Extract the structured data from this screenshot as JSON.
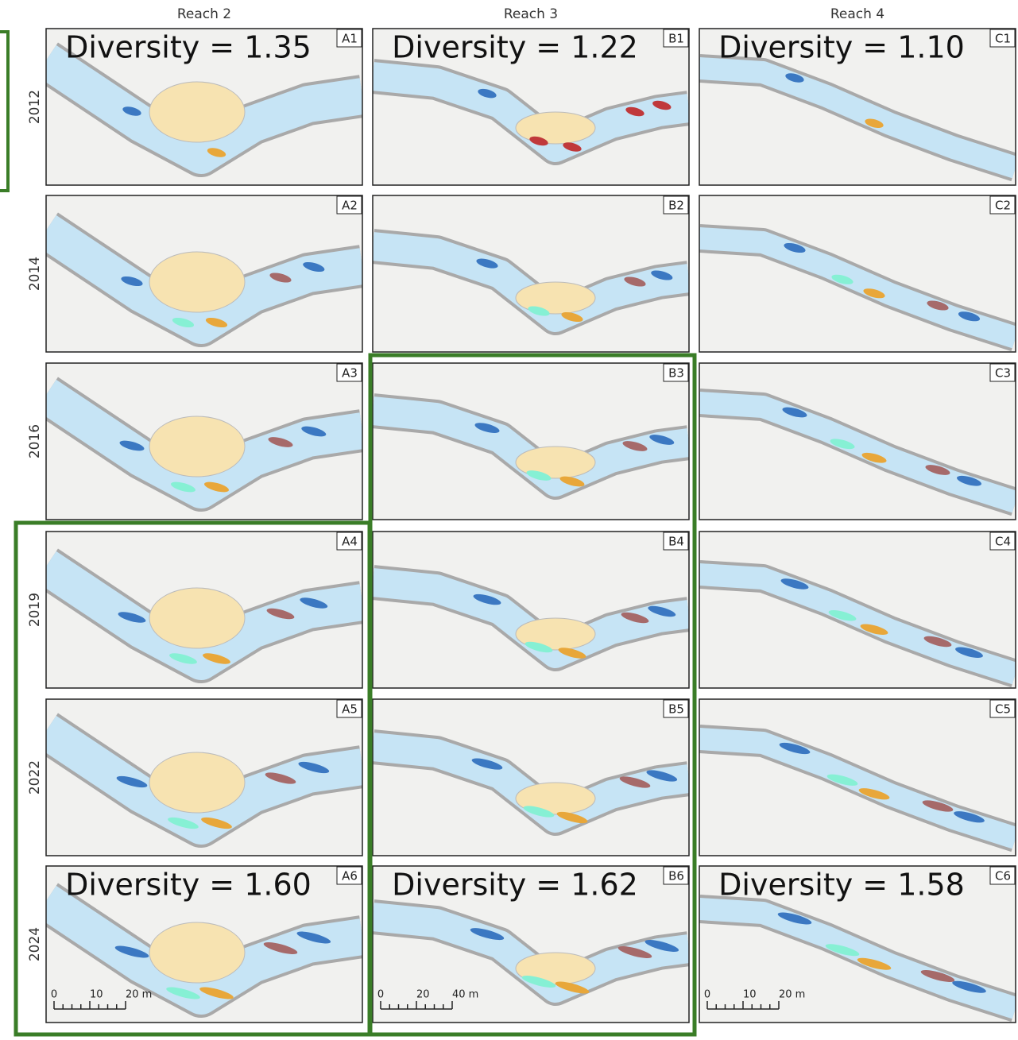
{
  "row_labels": [
    "2012",
    "2014",
    "2016",
    "2019",
    "2022",
    "2024"
  ],
  "columns": [
    {
      "header": "Reach 2",
      "scale": [
        "0",
        "10",
        "20 m"
      ],
      "panels": [
        {
          "label": "A1",
          "diversity": "Diversity = 1.35"
        },
        {
          "label": "A2"
        },
        {
          "label": "A3"
        },
        {
          "label": "A4"
        },
        {
          "label": "A5"
        },
        {
          "label": "A6",
          "diversity": "Diversity = 1.60"
        }
      ]
    },
    {
      "header": "Reach 3",
      "scale": [
        "0",
        "20",
        "40 m"
      ],
      "panels": [
        {
          "label": "B1",
          "diversity": "Diversity = 1.22"
        },
        {
          "label": "B2"
        },
        {
          "label": "B3"
        },
        {
          "label": "B4"
        },
        {
          "label": "B5"
        },
        {
          "label": "B6",
          "diversity": "Diversity = 1.62"
        }
      ]
    },
    {
      "header": "Reach 4",
      "scale": [
        "0",
        "10",
        "20 m"
      ],
      "panels": [
        {
          "label": "C1",
          "diversity": "Diversity = 1.10"
        },
        {
          "label": "C2"
        },
        {
          "label": "C3"
        },
        {
          "label": "C4"
        },
        {
          "label": "C5"
        },
        {
          "label": "C6",
          "diversity": "Diversity = 1.58"
        }
      ]
    }
  ]
}
